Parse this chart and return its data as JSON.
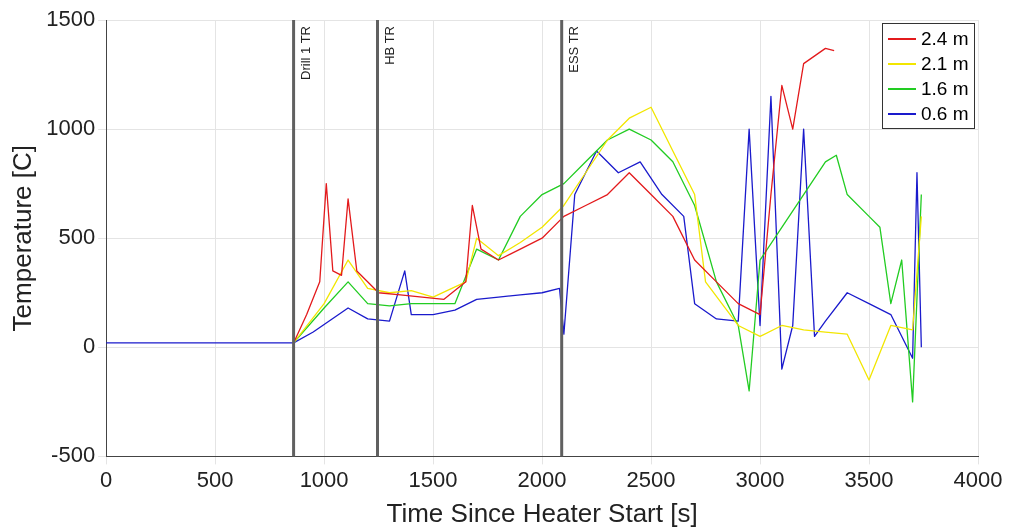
{
  "chart_data": {
    "type": "line",
    "xlabel": "Time Since Heater Start [s]",
    "ylabel": "Temperature [C]",
    "xlim": [
      0,
      4000
    ],
    "xticks": [
      0,
      500,
      1000,
      1500,
      2000,
      2500,
      3000,
      3500,
      4000
    ],
    "ylim": [
      -500,
      1500
    ],
    "yticks": [
      -500,
      0,
      500,
      1000,
      1500
    ],
    "grid": true,
    "legend": "top right",
    "marker": "none",
    "line_style": "solid",
    "ref_lines": [
      {
        "axis": "x",
        "value": 860,
        "label": "Drill 1 TR",
        "color": "#606060"
      },
      {
        "axis": "x",
        "value": 1245,
        "label": "HB TR",
        "color": "#606060"
      },
      {
        "axis": "x",
        "value": 2090,
        "label": "ESS TR",
        "color": "#606060"
      }
    ],
    "series": [
      {
        "name": "2.4 m",
        "color": "#e31a1c",
        "x": [
          860,
          920,
          980,
          1010,
          1040,
          1080,
          1110,
          1150,
          1250,
          1350,
          1450,
          1550,
          1650,
          1680,
          1720,
          1800,
          1900,
          2000,
          2100,
          2200,
          2300,
          2400,
          2500,
          2600,
          2700,
          2800,
          2900,
          3000,
          3050,
          3100,
          3150,
          3200,
          3300,
          3340
        ],
        "values": [
          20,
          150,
          300,
          750,
          350,
          330,
          680,
          350,
          250,
          240,
          230,
          220,
          300,
          650,
          450,
          400,
          450,
          500,
          600,
          650,
          700,
          800,
          700,
          600,
          400,
          300,
          200,
          150,
          700,
          1200,
          1000,
          1300,
          1370,
          1360
        ]
      },
      {
        "name": "2.1 m",
        "color": "#f2e600",
        "x": [
          860,
          1000,
          1110,
          1200,
          1300,
          1400,
          1500,
          1650,
          1700,
          1800,
          1900,
          2000,
          2100,
          2200,
          2300,
          2400,
          2500,
          2600,
          2700,
          2750,
          2900,
          3000,
          3100,
          3200,
          3300,
          3400,
          3500,
          3600,
          3700,
          3740
        ],
        "values": [
          20,
          200,
          400,
          270,
          250,
          260,
          230,
          300,
          500,
          420,
          480,
          550,
          650,
          800,
          950,
          1050,
          1100,
          900,
          700,
          300,
          100,
          50,
          100,
          80,
          70,
          60,
          -150,
          100,
          80,
          600
        ]
      },
      {
        "name": "1.6 m",
        "color": "#22cc22",
        "x": [
          860,
          1000,
          1110,
          1200,
          1300,
          1400,
          1600,
          1700,
          1800,
          1900,
          2000,
          2100,
          2200,
          2300,
          2400,
          2500,
          2600,
          2700,
          2800,
          2900,
          2950,
          3000,
          3100,
          3200,
          3300,
          3350,
          3400,
          3500,
          3550,
          3600,
          3650,
          3700,
          3740
        ],
        "values": [
          20,
          180,
          300,
          200,
          190,
          200,
          200,
          450,
          400,
          600,
          700,
          750,
          850,
          950,
          1000,
          950,
          850,
          650,
          300,
          100,
          -200,
          400,
          550,
          700,
          850,
          880,
          700,
          600,
          550,
          200,
          400,
          -250,
          700
        ]
      },
      {
        "name": "0.6 m",
        "color": "#1a1acc",
        "x": [
          0,
          860,
          950,
          1110,
          1200,
          1300,
          1370,
          1400,
          1500,
          1600,
          1700,
          1800,
          1900,
          2000,
          2080,
          2100,
          2150,
          2250,
          2350,
          2450,
          2550,
          2650,
          2700,
          2800,
          2900,
          2950,
          3000,
          3050,
          3100,
          3150,
          3200,
          3250,
          3300,
          3400,
          3500,
          3600,
          3700,
          3720,
          3740
        ],
        "values": [
          20,
          20,
          70,
          180,
          130,
          120,
          350,
          150,
          150,
          170,
          220,
          230,
          240,
          250,
          270,
          60,
          700,
          900,
          800,
          850,
          700,
          600,
          200,
          130,
          120,
          1000,
          100,
          1150,
          -100,
          100,
          1000,
          50,
          120,
          250,
          200,
          150,
          -50,
          800,
          0
        ]
      }
    ]
  }
}
